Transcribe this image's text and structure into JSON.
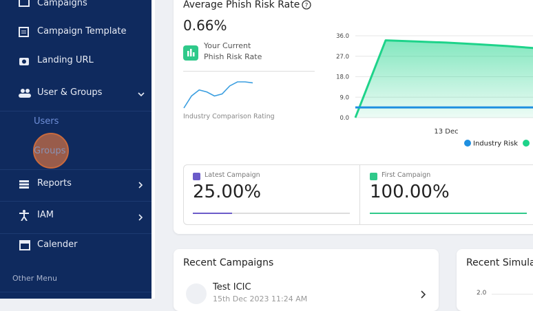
{
  "sidebar": {
    "items": [
      "Campaigns",
      "Campaign Template",
      "Landing URL",
      "User & Groups"
    ],
    "subitems": [
      "Users",
      "Groups"
    ],
    "items2": [
      "Reports",
      "IAM",
      "Calender"
    ],
    "section": "Other Menu"
  },
  "risk_card": {
    "title": "Average Phish Risk Rate",
    "value": "0.66%",
    "current_line1": "Your Current",
    "current_line2": "Phish Risk Rate",
    "industry_label": "Industry Comparison Rating",
    "sparkline": {
      "type": "line",
      "values": [
        2,
        8,
        11,
        10,
        8,
        9,
        13,
        15,
        15,
        14.5
      ],
      "color": "#3a9ee0"
    }
  },
  "chart_data": {
    "type": "line",
    "categories": [
      null,
      null,
      null,
      "13 Dec",
      null,
      null,
      null
    ],
    "series": [
      {
        "name": "Industry Risk",
        "color": "#1e8fe0",
        "values": [
          4.5,
          4.5,
          4.5,
          4.5,
          4.5,
          4.5,
          4.5
        ]
      },
      {
        "color": "#1ed38a",
        "values": [
          0,
          34,
          33.5,
          33,
          32.3,
          31.5,
          30.5
        ]
      }
    ],
    "ylim": [
      0,
      36
    ],
    "yticks": [
      {
        "value": 0,
        "label": "0.0"
      },
      {
        "value": 9,
        "label": "9.0"
      },
      {
        "value": 18,
        "label": "18.0"
      },
      {
        "value": 27,
        "label": "27.0"
      },
      {
        "value": 36,
        "label": "36.0"
      }
    ],
    "grid": true
  },
  "campaigns": [
    {
      "label": "Latest Campaign",
      "value": "25.00%",
      "progress": 25,
      "color": "#6b5bc9",
      "track": "#dddddd"
    },
    {
      "label": "First Campaign",
      "value": "100.00%",
      "progress": 100,
      "color": "#2fc98a",
      "track": "#dddddd"
    }
  ],
  "recent": {
    "title": "Recent Campaigns",
    "item_name": "Test ICIC",
    "item_date": "15th Dec 2023 11:24 AM"
  },
  "simulation": {
    "title": "Recent Simula",
    "tick": "2.0"
  }
}
